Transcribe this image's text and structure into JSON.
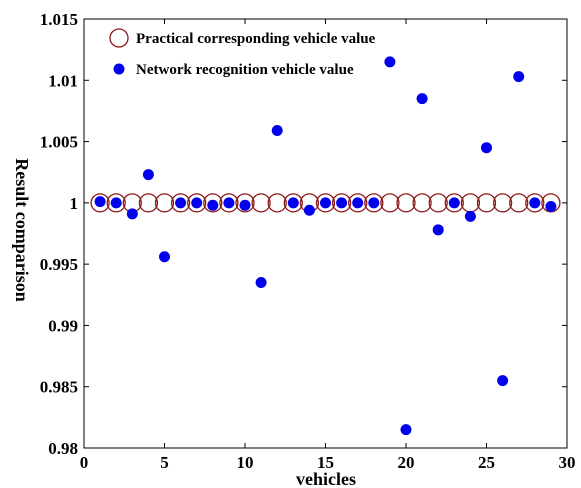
{
  "chart_data": {
    "type": "scatter",
    "xlabel": "vehicles",
    "ylabel": "Result comparison",
    "xlim": [
      0,
      30
    ],
    "ylim": [
      0.98,
      1.015
    ],
    "xticks": [
      0,
      5,
      10,
      15,
      20,
      25,
      30
    ],
    "yticks": [
      0.98,
      0.985,
      0.99,
      0.995,
      1,
      1.005,
      1.01,
      1.015
    ],
    "xtick_labels": [
      "0",
      "5",
      "10",
      "15",
      "20",
      "25",
      "30"
    ],
    "ytick_labels": [
      "0.98",
      "0.985",
      "0.99",
      "0.995",
      "1",
      "1.005",
      "1.01",
      "1.015"
    ],
    "legend_position": "top-left",
    "grid": false,
    "series": [
      {
        "name": "Practical corresponding vehicle value",
        "marker": "open-circle",
        "color": "#8b1a1a",
        "x": [
          1,
          2,
          3,
          4,
          5,
          6,
          7,
          8,
          9,
          10,
          11,
          12,
          13,
          14,
          15,
          16,
          17,
          18,
          19,
          20,
          21,
          22,
          23,
          24,
          25,
          26,
          27,
          28,
          29
        ],
        "y": [
          1,
          1,
          1,
          1,
          1,
          1,
          1,
          1,
          1,
          1,
          1,
          1,
          1,
          1,
          1,
          1,
          1,
          1,
          1,
          1,
          1,
          1,
          1,
          1,
          1,
          1,
          1,
          1,
          1
        ]
      },
      {
        "name": "Network recognition vehicle value",
        "marker": "filled-circle",
        "color": "#0000ee",
        "x": [
          1,
          2,
          3,
          4,
          5,
          6,
          7,
          8,
          9,
          10,
          11,
          12,
          13,
          14,
          15,
          16,
          17,
          18,
          19,
          20,
          21,
          22,
          23,
          24,
          25,
          26,
          27,
          28,
          29
        ],
        "y": [
          1.0001,
          1.0,
          0.9991,
          1.0023,
          0.9956,
          1.0,
          1.0,
          0.9998,
          1.0,
          0.9998,
          0.9935,
          1.0059,
          1.0,
          0.9994,
          1.0,
          1.0,
          1.0,
          1.0,
          1.0115,
          0.9815,
          1.0085,
          0.9978,
          1.0,
          0.9989,
          1.0045,
          0.9855,
          1.0103,
          1.0,
          0.9997
        ]
      }
    ]
  }
}
